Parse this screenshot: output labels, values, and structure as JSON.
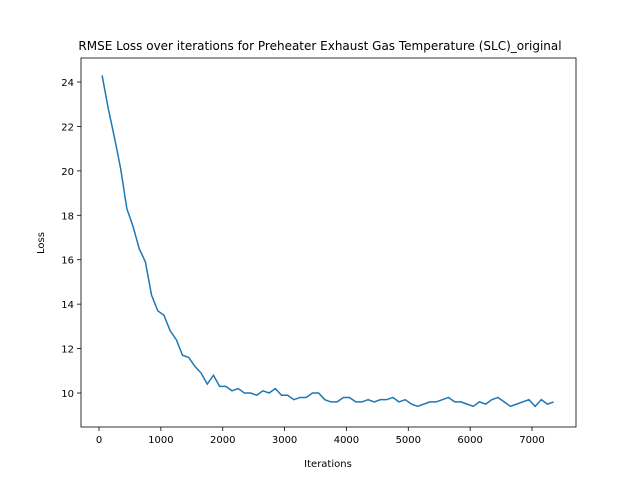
{
  "chart_data": {
    "type": "line",
    "title": "RMSE Loss over iterations for Preheater Exhaust Gas Temperature (SLC)_original",
    "xlabel": "Iterations",
    "ylabel": "Loss",
    "x": [
      50,
      150,
      250,
      350,
      450,
      550,
      650,
      750,
      850,
      950,
      1050,
      1150,
      1250,
      1350,
      1450,
      1550,
      1650,
      1750,
      1850,
      1950,
      2050,
      2150,
      2250,
      2350,
      2450,
      2550,
      2650,
      2750,
      2850,
      2950,
      3050,
      3150,
      3250,
      3350,
      3450,
      3550,
      3650,
      3750,
      3850,
      3950,
      4050,
      4150,
      4250,
      4350,
      4450,
      4550,
      4650,
      4750,
      4850,
      4950,
      5050,
      5150,
      5250,
      5350,
      5450,
      5550,
      5650,
      5750,
      5850,
      5950,
      6050,
      6150,
      6250,
      6350,
      6450,
      6550,
      6650,
      6750,
      6850,
      6950,
      7050,
      7150,
      7250,
      7350
    ],
    "series": [
      {
        "name": "Loss",
        "color": "#1f77b4",
        "values": [
          24.3,
          22.8,
          21.5,
          20.1,
          18.3,
          17.5,
          16.5,
          15.9,
          14.4,
          13.7,
          13.5,
          12.8,
          12.4,
          11.7,
          11.6,
          11.2,
          10.9,
          10.4,
          10.8,
          10.3,
          10.3,
          10.1,
          10.2,
          10.0,
          10.0,
          9.9,
          10.1,
          10.0,
          10.2,
          9.9,
          9.9,
          9.7,
          9.8,
          9.8,
          10.0,
          10.0,
          9.7,
          9.6,
          9.6,
          9.8,
          9.8,
          9.6,
          9.6,
          9.7,
          9.6,
          9.7,
          9.7,
          9.8,
          9.6,
          9.7,
          9.5,
          9.4,
          9.5,
          9.6,
          9.6,
          9.7,
          9.8,
          9.6,
          9.6,
          9.5,
          9.4,
          9.6,
          9.5,
          9.7,
          9.8,
          9.6,
          9.4,
          9.5,
          9.6,
          9.7,
          9.4,
          9.7,
          9.5,
          9.6
        ]
      }
    ],
    "xlim": [
      -291,
      7711
    ],
    "ylim": [
      8.47,
      25.08
    ],
    "xticks": [
      0,
      1000,
      2000,
      3000,
      4000,
      5000,
      6000,
      7000
    ],
    "yticks": [
      10,
      12,
      14,
      16,
      18,
      20,
      22,
      24
    ]
  }
}
